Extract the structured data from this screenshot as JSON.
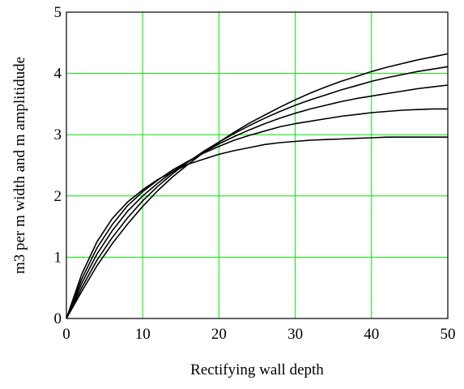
{
  "chart_data": {
    "type": "line",
    "title": "",
    "xlabel": "Rectifying wall depth",
    "ylabel": "m3 per m width and m amplitidude",
    "xlim": [
      0,
      50
    ],
    "ylim": [
      0,
      5
    ],
    "xticks": [
      "0",
      "10",
      "20",
      "30",
      "40",
      "50"
    ],
    "yticks": [
      "0",
      "1",
      "2",
      "3",
      "4",
      "5"
    ],
    "grid": true,
    "legend": "none",
    "colors": {
      "grid": "#00e600",
      "line": "#000000",
      "axis": "#000000"
    },
    "x": [
      0,
      2,
      4,
      6,
      8,
      10,
      12,
      14,
      16,
      18,
      20,
      22,
      24,
      26,
      28,
      30,
      32,
      34,
      36,
      38,
      40,
      42,
      44,
      46,
      48,
      50
    ],
    "series": [
      {
        "values": [
          0,
          0.72,
          1.25,
          1.63,
          1.9,
          2.1,
          2.27,
          2.4,
          2.52,
          2.6,
          2.68,
          2.74,
          2.79,
          2.84,
          2.87,
          2.89,
          2.91,
          2.92,
          2.93,
          2.94,
          2.95,
          2.96,
          2.96,
          2.96,
          2.96,
          2.96
        ]
      },
      {
        "values": [
          0,
          0.64,
          1.15,
          1.53,
          1.84,
          2.07,
          2.26,
          2.43,
          2.57,
          2.7,
          2.81,
          2.91,
          2.99,
          3.06,
          3.13,
          3.18,
          3.22,
          3.26,
          3.3,
          3.33,
          3.36,
          3.38,
          3.4,
          3.41,
          3.42,
          3.42
        ]
      },
      {
        "values": [
          0,
          0.57,
          1.05,
          1.43,
          1.75,
          2.0,
          2.21,
          2.4,
          2.56,
          2.71,
          2.85,
          2.97,
          3.08,
          3.18,
          3.27,
          3.35,
          3.42,
          3.48,
          3.54,
          3.59,
          3.63,
          3.67,
          3.71,
          3.75,
          3.78,
          3.81
        ]
      },
      {
        "values": [
          0,
          0.5,
          0.95,
          1.32,
          1.64,
          1.92,
          2.16,
          2.37,
          2.56,
          2.73,
          2.88,
          3.02,
          3.15,
          3.27,
          3.38,
          3.48,
          3.57,
          3.65,
          3.73,
          3.8,
          3.87,
          3.93,
          3.98,
          4.03,
          4.07,
          4.11
        ]
      },
      {
        "values": [
          0,
          0.44,
          0.86,
          1.22,
          1.54,
          1.83,
          2.09,
          2.32,
          2.52,
          2.71,
          2.88,
          3.04,
          3.19,
          3.32,
          3.45,
          3.57,
          3.68,
          3.78,
          3.87,
          3.95,
          4.03,
          4.1,
          4.16,
          4.22,
          4.27,
          4.32
        ]
      }
    ]
  }
}
